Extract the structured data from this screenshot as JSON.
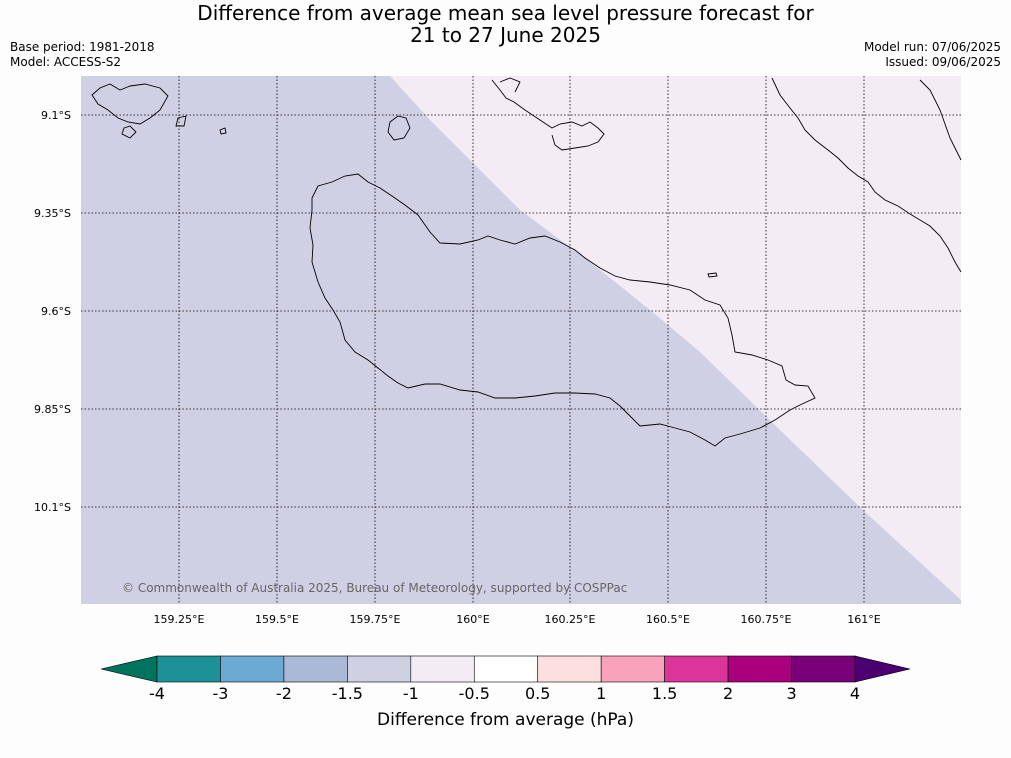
{
  "title": {
    "line1": "Difference from average mean sea level pressure forecast for",
    "line2": "21 to 27 June 2025"
  },
  "meta": {
    "base_period": "Base period: 1981-2018",
    "model": "Model: ACCESS-S2",
    "model_run": "Model run: 07/06/2025",
    "issued": "Issued: 09/06/2025"
  },
  "map": {
    "lat_labels": [
      "9.1°S",
      "9.35°S",
      "9.6°S",
      "9.85°S",
      "10.1°S"
    ],
    "lon_labels": [
      "159.25°E",
      "159.5°E",
      "159.75°E",
      "160°E",
      "160.25°E",
      "160.5°E",
      "160.75°E",
      "161°E"
    ],
    "copyright": "© Commonwealth of Australia 2025, Bureau of Meteorology, supported by COSPPac",
    "region_colors": {
      "-1.5_to_-1": "#cfd0e4",
      "-1_to_-0.5": "#f3ecf5"
    }
  },
  "colorbar": {
    "ticks": [
      "-4",
      "-3",
      "-2",
      "-1.5",
      "-1",
      "-0.5",
      "0.5",
      "1",
      "1.5",
      "2",
      "3",
      "4"
    ],
    "colors": [
      "#1c9198",
      "#6aaad3",
      "#aab9d6",
      "#cfd0e4",
      "#f3ecf5",
      "#ffffff",
      "#fedfdf",
      "#f8a2bb",
      "#dc3599",
      "#ab007d",
      "#7a007a"
    ],
    "extend_low_color": "#00735f",
    "extend_high_color": "#4c0070",
    "label": "Difference from average (hPa)"
  }
}
